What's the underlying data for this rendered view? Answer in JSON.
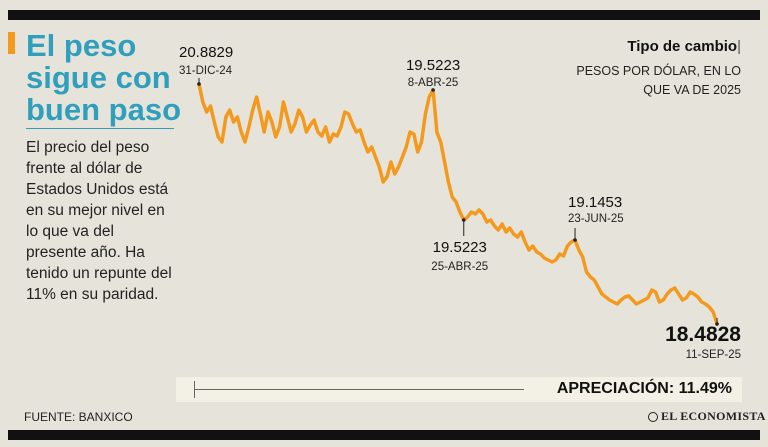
{
  "headline": "El peso sigue con buen paso",
  "description": "El precio del peso frente al dólar de Estados Unidos está en su mejor nivel en lo que va del presente año. Ha tenido un repunte del 11% en su paridad.",
  "subtitle": {
    "title": "Tipo de cambio",
    "cursor": "|",
    "text": "PESOS POR DÓLAR, EN LO QUE VA DE 2025"
  },
  "source": "FUENTE: BANXICO",
  "logo": "EL ECONOMISTA",
  "appreciation_label": "APRECIACIÓN: 11.49%",
  "colors": {
    "line": "#f39a1e",
    "headline": "#2f9fbd",
    "background": "#e6e4da"
  },
  "chart_data": {
    "type": "line",
    "title": "Tipo de cambio",
    "subtitle": "PESOS POR DÓLAR, EN LO QUE VA DE 2025",
    "xlabel": "",
    "ylabel": "",
    "grid": false,
    "ylim": [
      18.3,
      21.3
    ],
    "series": [
      {
        "values": [
          20.88,
          20.7,
          20.6,
          20.66,
          20.5,
          20.35,
          20.3,
          20.55,
          20.62,
          20.5,
          20.55,
          20.4,
          20.3,
          20.45,
          20.62,
          20.75,
          20.58,
          20.4,
          20.6,
          20.5,
          20.35,
          20.45,
          20.7,
          20.55,
          20.4,
          20.48,
          20.62,
          20.55,
          20.4,
          20.47,
          20.52,
          20.4,
          20.36,
          20.45,
          20.3,
          20.38,
          20.36,
          20.45,
          20.6,
          20.58,
          20.48,
          20.4,
          20.42,
          20.3,
          20.2,
          20.25,
          20.15,
          20.05,
          19.9,
          19.95,
          20.1,
          19.98,
          20.05,
          20.15,
          20.25,
          20.4,
          20.38,
          20.2,
          20.3,
          20.58,
          20.75,
          20.82,
          20.4,
          20.3,
          20.1,
          19.9,
          19.75,
          19.7,
          19.6,
          19.52,
          19.55,
          19.6,
          19.58,
          19.62,
          19.58,
          19.5,
          19.52,
          19.46,
          19.42,
          19.48,
          19.4,
          19.44,
          19.38,
          19.35,
          19.4,
          19.3,
          19.22,
          19.26,
          19.2,
          19.18,
          19.14,
          19.12,
          19.1,
          19.12,
          19.18,
          19.16,
          19.26,
          19.3,
          19.32,
          19.22,
          19.15,
          19.0,
          18.95,
          18.92,
          18.85,
          18.78,
          18.75,
          18.72,
          18.7,
          18.68,
          18.72,
          18.75,
          18.76,
          18.72,
          18.68,
          18.7,
          18.72,
          18.74,
          18.82,
          18.8,
          18.7,
          18.72,
          18.78,
          18.82,
          18.84,
          18.78,
          18.72,
          18.74,
          18.8,
          18.78,
          18.75,
          18.7,
          18.68,
          18.65,
          18.6,
          18.48
        ]
      }
    ],
    "annotations": [
      {
        "value": "20.8829",
        "date": "31-DIC-24"
      },
      {
        "value": "19.5223",
        "date": "8-ABR-25"
      },
      {
        "value": "19.5223",
        "date": "25-ABR-25"
      },
      {
        "value": "19.1453",
        "date": "23-JUN-25"
      },
      {
        "value": "18.4828",
        "date": "11-SEP-25"
      }
    ]
  }
}
